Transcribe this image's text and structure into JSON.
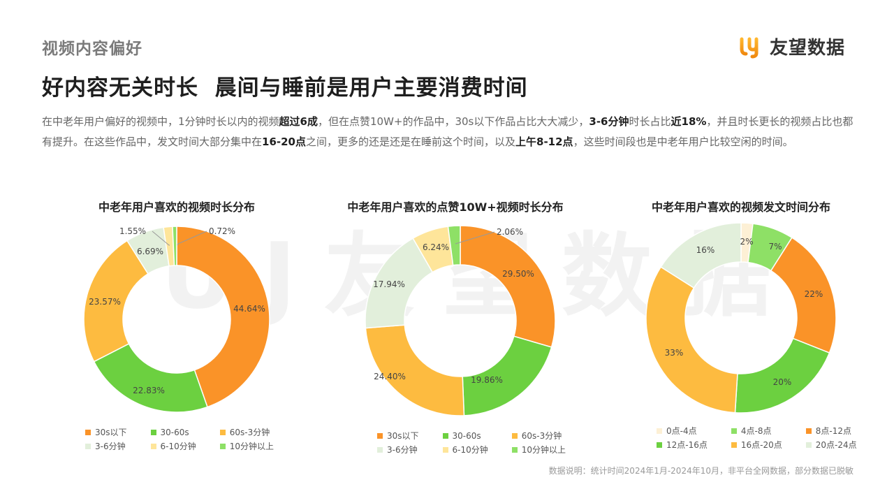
{
  "header": {
    "section_label": "视频内容偏好",
    "title": "好内容无关时长  晨间与睡前是用户主要消费时间",
    "logo_text": "友望数据",
    "watermark": "UJ友望数据"
  },
  "description": {
    "parts": [
      {
        "t": "在中老年用户偏好的视频中，1分钟时长以内的视频",
        "b": false
      },
      {
        "t": "超过6成",
        "b": true
      },
      {
        "t": "，但在点赞10W+的作品中，30s以下作品占比大大减少，",
        "b": false
      },
      {
        "t": "3-6分钟",
        "b": true
      },
      {
        "t": "时长占比",
        "b": false
      },
      {
        "t": "近18%",
        "b": true
      },
      {
        "t": "，并且时长更长的视频占比也都有提升。在这些作品中，发文时间大部分集中在",
        "b": false
      },
      {
        "t": "16-20点",
        "b": true
      },
      {
        "t": "之间，更多的还是还是在睡前这个时间，以及",
        "b": false
      },
      {
        "t": "上午8-12点",
        "b": true
      },
      {
        "t": "，这些时间段也是中老年用户比较空闲的时间。",
        "b": false
      }
    ]
  },
  "footnote": "数据说明：统计时间2024年1月-2024年10月，非平台全网数据，部分数据已脱敏",
  "colors": {
    "orange": "#FA9328",
    "green": "#6CD040",
    "yellow": "#FDBB40",
    "pale_green": "#E2EFDB",
    "pale_yellow": "#FEE59A",
    "light_green": "#8EE066",
    "cream": "#FDF0D5"
  },
  "chart_data": [
    {
      "type": "pie",
      "style": "donut",
      "title": "中老年用户喜欢的视频时长分布",
      "categories": [
        "30s以下",
        "30-60s",
        "60s-3分钟",
        "3-6分钟",
        "6-10分钟",
        "10分钟以上"
      ],
      "values": [
        44.64,
        22.83,
        23.57,
        6.69,
        1.55,
        0.72
      ],
      "labels": [
        "44.64%",
        "22.83%",
        "23.57%",
        "6.69%",
        "1.55%",
        "0.72%"
      ],
      "colors": [
        "#FA9328",
        "#6CD040",
        "#FDBB40",
        "#E2EFDB",
        "#FEE59A",
        "#8EE066"
      ],
      "legend_position": "bottom"
    },
    {
      "type": "pie",
      "style": "donut",
      "title": "中老年用户喜欢的点赞10W+视频时长分布",
      "categories": [
        "30s以下",
        "30-60s",
        "60s-3分钟",
        "3-6分钟",
        "6-10分钟",
        "10分钟以上"
      ],
      "values": [
        29.5,
        19.86,
        24.4,
        17.94,
        6.24,
        2.06
      ],
      "labels": [
        "29.50%",
        "19.86%",
        "24.40%",
        "17.94%",
        "6.24%",
        "2.06%"
      ],
      "colors": [
        "#FA9328",
        "#6CD040",
        "#FDBB40",
        "#E2EFDB",
        "#FEE59A",
        "#8EE066"
      ],
      "legend_position": "bottom"
    },
    {
      "type": "pie",
      "style": "donut",
      "title": "中老年用户喜欢的视频发文时间分布",
      "categories": [
        "0点-4点",
        "4点-8点",
        "8点-12点",
        "12点-16点",
        "16点-20点",
        "20点-24点"
      ],
      "values": [
        2,
        7,
        22,
        20,
        33,
        16
      ],
      "labels": [
        "2%",
        "7%",
        "22%",
        "20%",
        "33%",
        "16%"
      ],
      "colors": [
        "#FDF0D5",
        "#8EE066",
        "#FA9328",
        "#6CD040",
        "#FDBB40",
        "#E2EFDB"
      ],
      "legend_position": "bottom"
    }
  ]
}
